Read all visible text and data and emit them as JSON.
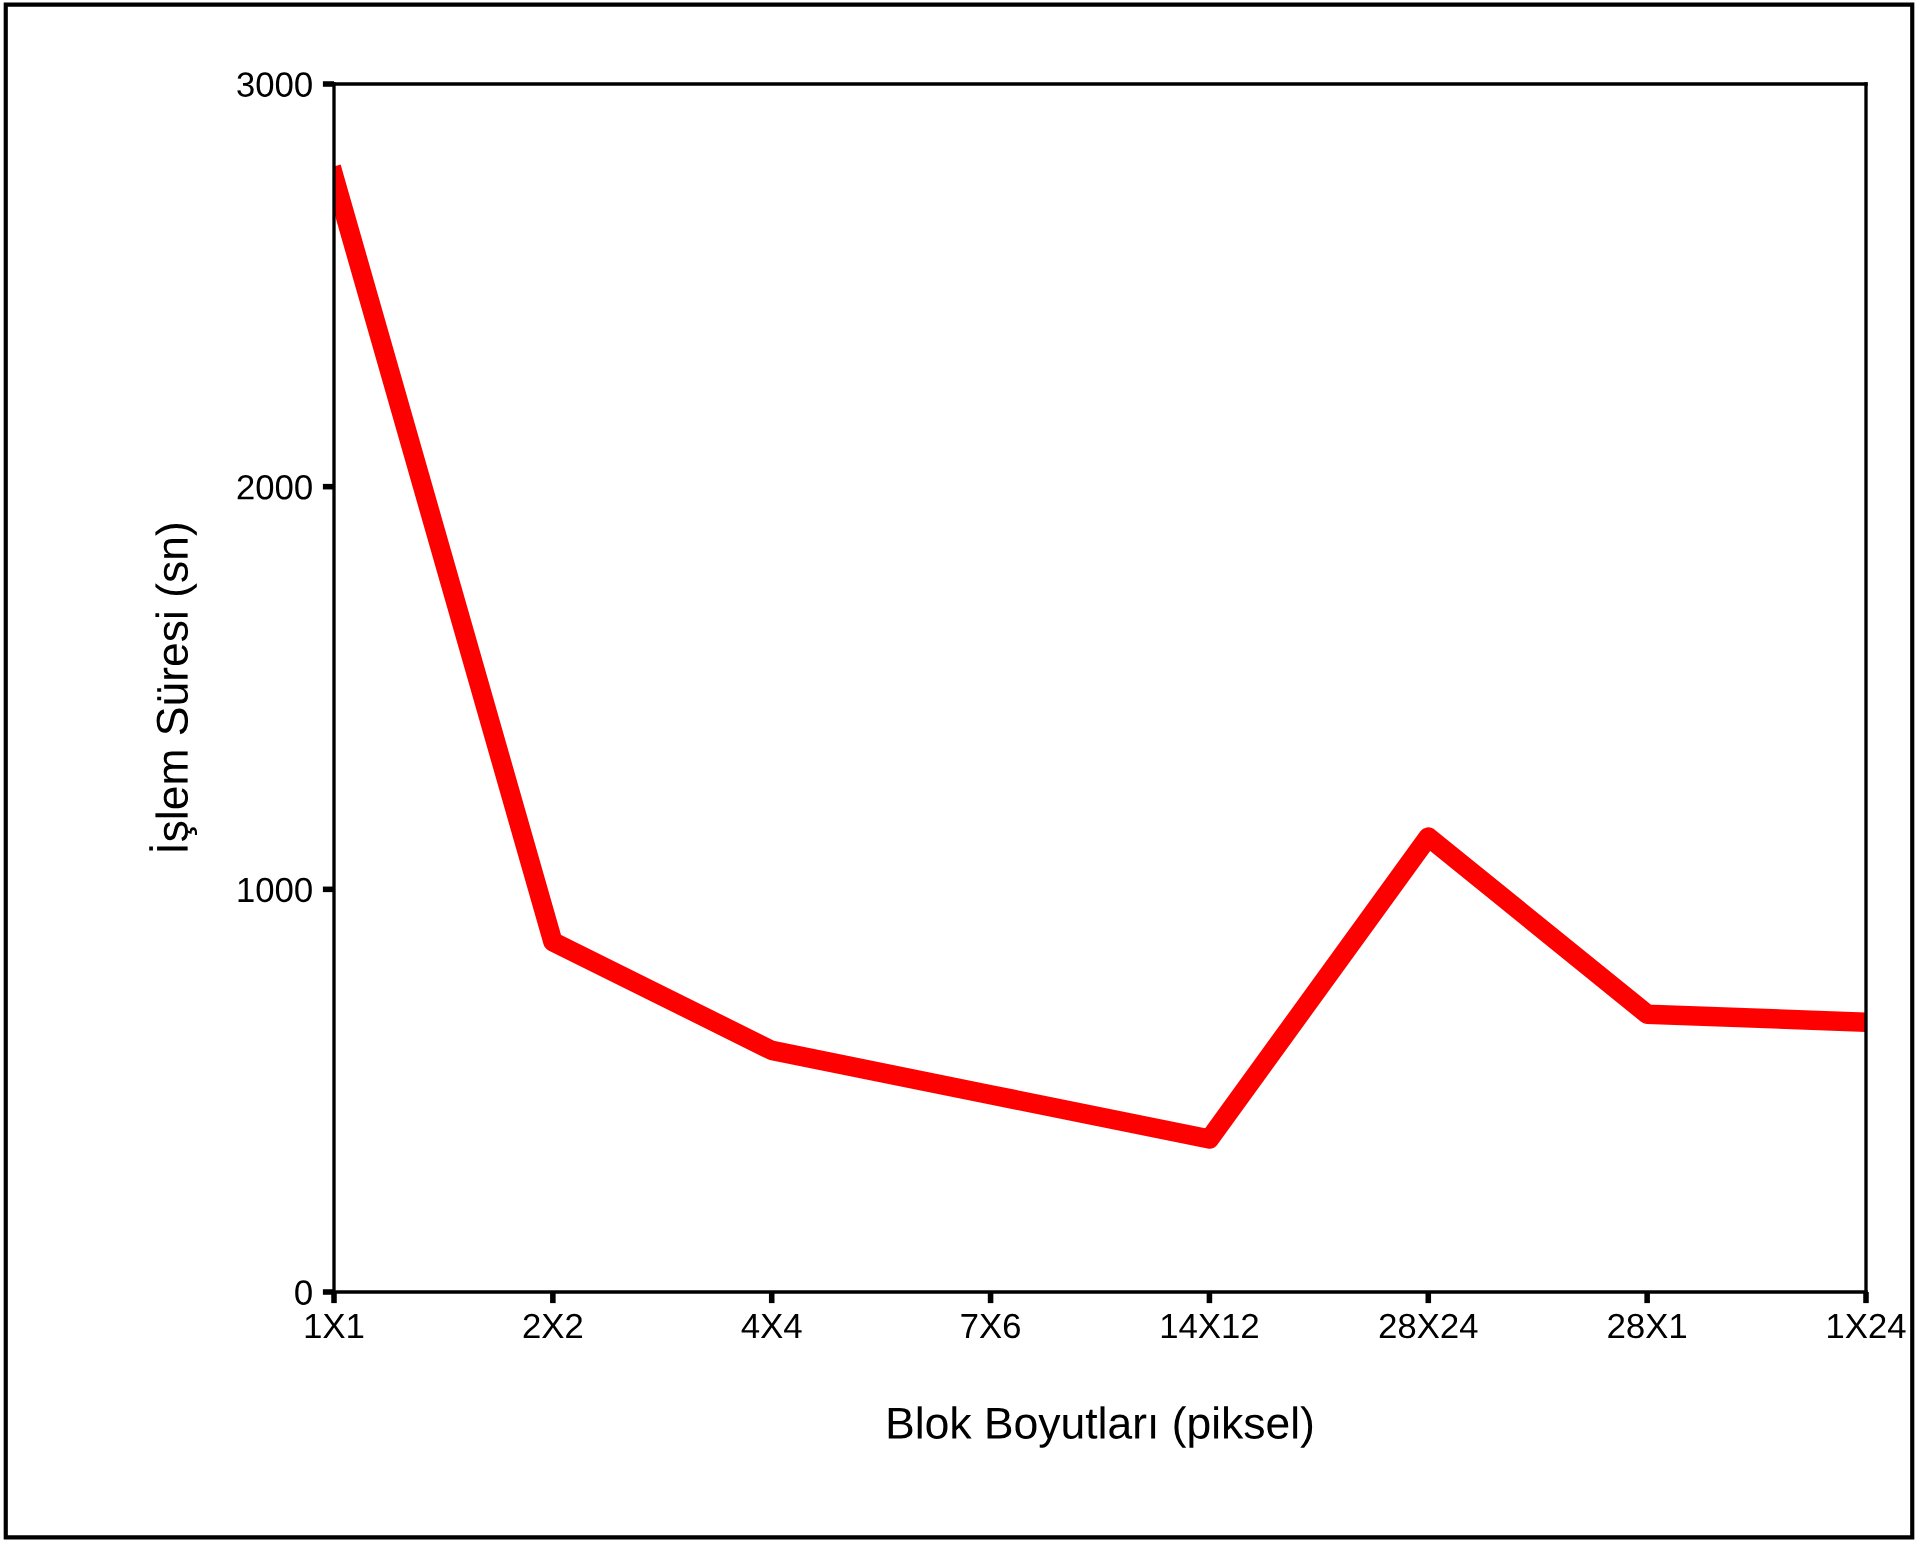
{
  "chart_data": {
    "type": "line",
    "xlabel": "Blok Boyutları (piksel)",
    "ylabel": "İşlem Süresi (sn)",
    "categories": [
      "1X1",
      "2X2",
      "4X4",
      "7X6",
      "14X12",
      "28X24",
      "28X1",
      "1X24"
    ],
    "series": [
      {
        "color": "#ff0000",
        "values": [
          2770,
          870,
          600,
          490,
          380,
          1130,
          690,
          670
        ]
      }
    ],
    "ylim": [
      0,
      3000
    ],
    "yticks": [
      0,
      1000,
      2000,
      3000
    ],
    "grid": false,
    "marker": "none",
    "line_style": "solid"
  }
}
